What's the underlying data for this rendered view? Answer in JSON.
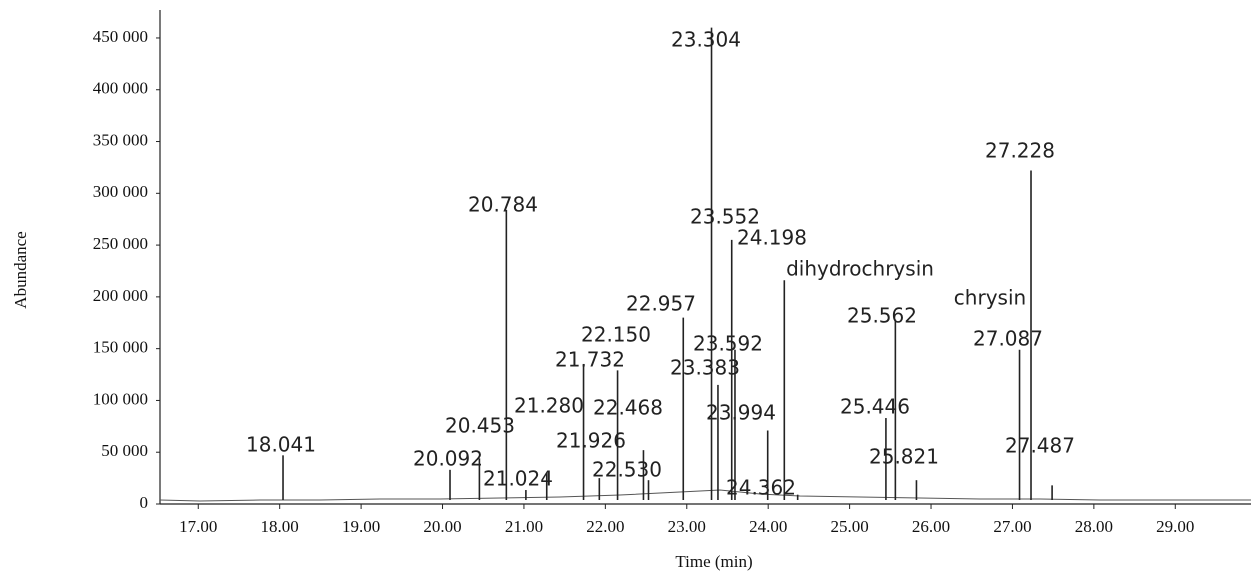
{
  "chart_data": {
    "type": "peaks",
    "x_label": "Time (min)",
    "y_label": "Abundance",
    "x": [
      18.041,
      20.092,
      20.453,
      20.784,
      21.024,
      21.28,
      21.732,
      21.926,
      22.15,
      22.468,
      22.53,
      22.957,
      23.304,
      23.383,
      23.552,
      23.592,
      23.994,
      24.198,
      24.362,
      25.446,
      25.562,
      25.821,
      27.087,
      27.228,
      27.487
    ],
    "x_labels": [
      "18.041",
      "20.092",
      "20.453",
      "20.784",
      "21.024",
      "21.280",
      "21.732",
      "21.926",
      "22.150",
      "22.468",
      "22.530",
      "22.957",
      "23.304",
      "23.383",
      "23.552",
      "23.592",
      "23.994",
      "24.198",
      "24.362",
      "25.446",
      "25.562",
      "25.821",
      "27.087",
      "27.228",
      "27.487"
    ],
    "values": [
      47000,
      33000,
      44000,
      284000,
      13500,
      30000,
      134000,
      25000,
      129000,
      52000,
      23000,
      180000,
      460000,
      115000,
      255000,
      149000,
      71000,
      216000,
      9000,
      83000,
      178000,
      23000,
      149000,
      322000,
      18000
    ],
    "annotations": [
      "dihydrochrysin",
      "chrysin"
    ],
    "color": "#222222",
    "xlim": [
      16.53,
      29.93
    ],
    "ylim": [
      0,
      477000
    ],
    "xticks": [
      {
        "value": 17,
        "label": "17.00"
      },
      {
        "value": 18,
        "label": "18.00"
      },
      {
        "value": 19,
        "label": "19.00"
      },
      {
        "value": 20,
        "label": "20.00"
      },
      {
        "value": 21,
        "label": "21.00"
      },
      {
        "value": 22,
        "label": "22.00"
      },
      {
        "value": 23,
        "label": "23.00"
      },
      {
        "value": 24,
        "label": "24.00"
      },
      {
        "value": 25,
        "label": "25.00"
      },
      {
        "value": 26,
        "label": "26.00"
      },
      {
        "value": 27,
        "label": "27.00"
      },
      {
        "value": 28,
        "label": "28.00"
      },
      {
        "value": 29,
        "label": "29.00"
      }
    ],
    "yticks": [
      0,
      {
        "value": 50000,
        "label": "50 000"
      },
      {
        "value": 100000,
        "label": "100 000"
      },
      {
        "value": 150000,
        "label": "150 000"
      },
      {
        "value": 200000,
        "label": "200 000"
      },
      {
        "value": 250000,
        "label": "250 000"
      },
      {
        "value": 300000,
        "label": "300 000"
      },
      {
        "value": 350000,
        "label": "350 000"
      },
      {
        "value": 400000,
        "label": "400 000"
      },
      {
        "value": 450000,
        "label": "450 000"
      }
    ]
  }
}
